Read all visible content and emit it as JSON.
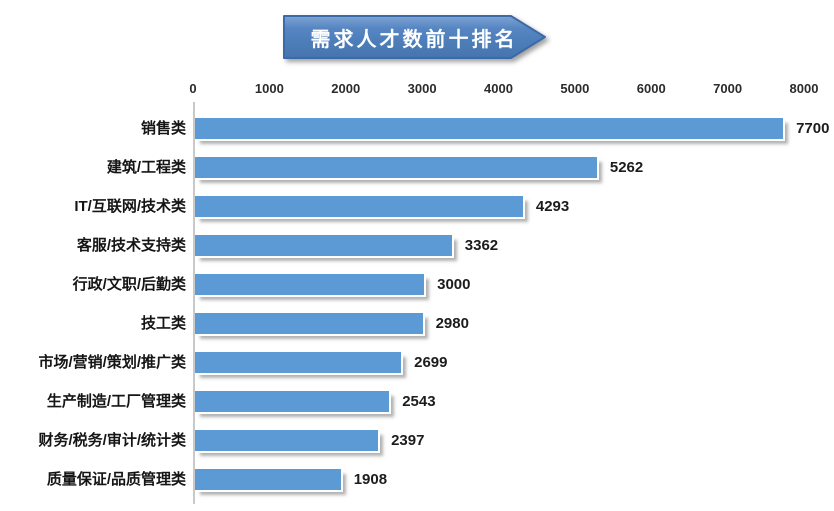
{
  "title_banner": {
    "text": "需求人才数前十排名"
  },
  "chart_data": {
    "type": "bar",
    "orientation": "horizontal",
    "title": "需求人才数前十排名",
    "categories": [
      "销售类",
      "建筑/工程类",
      "IT/互联网/技术类",
      "客服/技术支持类",
      "行政/文职/后勤类",
      "技工类",
      "市场/营销/策划/推广类",
      "生产制造/工厂管理类",
      "财务/税务/审计/统计类",
      "质量保证/品质管理类"
    ],
    "values": [
      7700,
      5262,
      4293,
      3362,
      3000,
      2980,
      2699,
      2543,
      2397,
      1908
    ],
    "xlabel": "",
    "ylabel": "",
    "xlim": [
      0,
      8000
    ],
    "x_ticks": [
      0,
      1000,
      2000,
      3000,
      4000,
      5000,
      6000,
      7000,
      8000
    ],
    "grid": false,
    "legend": "none",
    "data_labels": "outside-end",
    "colors": {
      "bar": "#5B9AD5",
      "banner_fill_top": "#7FA3D3",
      "banner_fill_mid": "#5585C2",
      "banner_fill_bottom": "#4674AE",
      "banner_border": "#3A6BA8",
      "axis_line": "#C9C9C9",
      "text": "#1C1C1C",
      "banner_text": "#FFFFFF"
    }
  }
}
